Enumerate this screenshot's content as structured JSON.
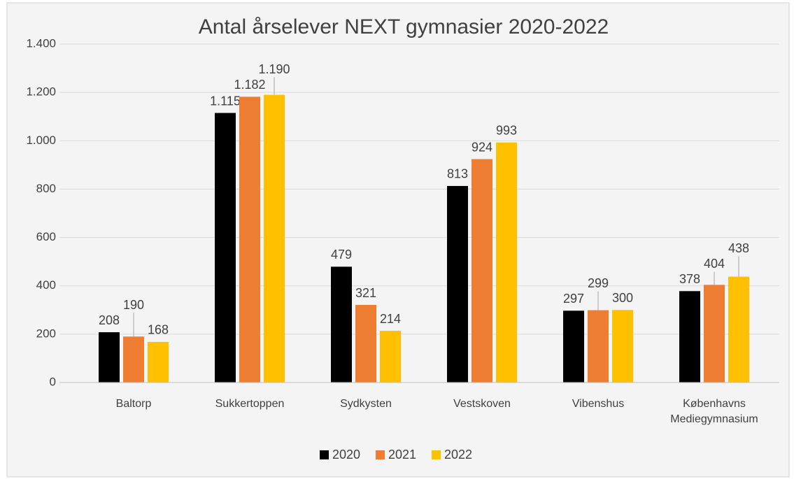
{
  "chart_data": {
    "type": "bar",
    "title": "Antal årselever NEXT gymnasier 2020-2022",
    "categories": [
      "Baltorp",
      "Sukkertoppen",
      "Sydkysten",
      "Vestskoven",
      "Vibenshus",
      "Københavns Mediegymnasium"
    ],
    "series": [
      {
        "name": "2020",
        "color": "#000000",
        "values": [
          208,
          1115,
          479,
          813,
          297,
          378
        ],
        "value_labels": [
          "208",
          "1.115",
          "479",
          "813",
          "297",
          "378"
        ]
      },
      {
        "name": "2021",
        "color": "#ed7d31",
        "values": [
          190,
          1182,
          321,
          924,
          299,
          404
        ],
        "value_labels": [
          "190",
          "1.182",
          "321",
          "924",
          "299",
          "404"
        ]
      },
      {
        "name": "2022",
        "color": "#ffc000",
        "values": [
          168,
          1190,
          214,
          993,
          300,
          438
        ],
        "value_labels": [
          "168",
          "1.190",
          "214",
          "993",
          "300",
          "438"
        ]
      }
    ],
    "ylim": [
      0,
      1400
    ],
    "yticks": [
      0,
      200,
      400,
      600,
      800,
      {
        "value": 1000,
        "label": "1.000"
      },
      {
        "value": 1200,
        "label": "1.200"
      },
      {
        "value": 1400,
        "label": "1.400"
      }
    ],
    "grid": true,
    "legend": "bottom"
  }
}
